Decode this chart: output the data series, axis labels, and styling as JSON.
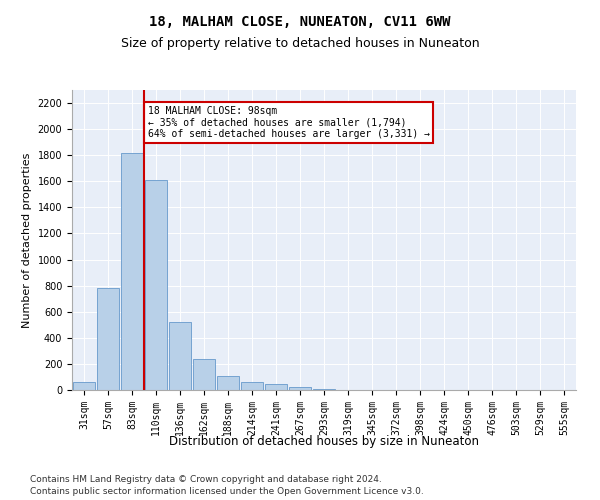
{
  "title": "18, MALHAM CLOSE, NUNEATON, CV11 6WW",
  "subtitle": "Size of property relative to detached houses in Nuneaton",
  "xlabel": "Distribution of detached houses by size in Nuneaton",
  "ylabel": "Number of detached properties",
  "categories": [
    "31sqm",
    "57sqm",
    "83sqm",
    "110sqm",
    "136sqm",
    "162sqm",
    "188sqm",
    "214sqm",
    "241sqm",
    "267sqm",
    "293sqm",
    "319sqm",
    "345sqm",
    "372sqm",
    "398sqm",
    "424sqm",
    "450sqm",
    "476sqm",
    "503sqm",
    "529sqm",
    "555sqm"
  ],
  "values": [
    60,
    780,
    1820,
    1610,
    520,
    235,
    105,
    60,
    45,
    22,
    10,
    0,
    0,
    0,
    0,
    0,
    0,
    0,
    0,
    0,
    0
  ],
  "bar_color": "#b8d0e8",
  "bar_edge_color": "#6699cc",
  "vline_color": "#cc0000",
  "annotation_text": "18 MALHAM CLOSE: 98sqm\n← 35% of detached houses are smaller (1,794)\n64% of semi-detached houses are larger (3,331) →",
  "annotation_box_color": "#ffffff",
  "annotation_box_edge": "#cc0000",
  "ylim": [
    0,
    2300
  ],
  "yticks": [
    0,
    200,
    400,
    600,
    800,
    1000,
    1200,
    1400,
    1600,
    1800,
    2000,
    2200
  ],
  "bg_color": "#e8eef8",
  "footer1": "Contains HM Land Registry data © Crown copyright and database right 2024.",
  "footer2": "Contains public sector information licensed under the Open Government Licence v3.0.",
  "title_fontsize": 10,
  "subtitle_fontsize": 9,
  "axis_label_fontsize": 8,
  "tick_fontsize": 7,
  "footer_fontsize": 6.5
}
